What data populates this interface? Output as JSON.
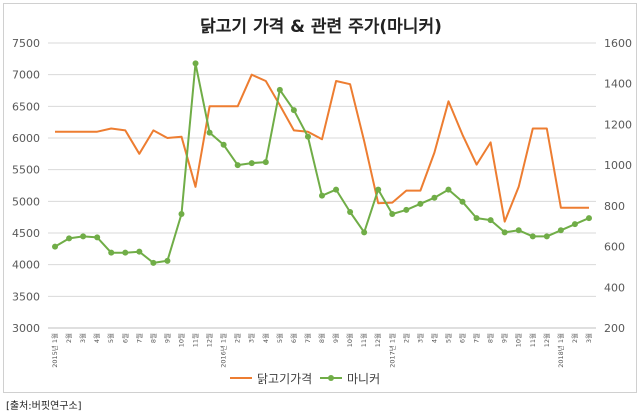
{
  "chart_data": {
    "type": "line",
    "title": "닭고기 가격 & 관련 주가(마니커)",
    "x": [
      "2015년 1월",
      "2월",
      "3월",
      "4월",
      "5월",
      "6월",
      "7월",
      "8월",
      "9월",
      "10월",
      "11월",
      "12월",
      "2016년 1월",
      "2월",
      "3월",
      "4월",
      "5월",
      "6월",
      "7월",
      "8월",
      "9월",
      "10월",
      "11월",
      "12월",
      "2017년 1월",
      "2월",
      "3월",
      "4월",
      "5월",
      "6월",
      "7월",
      "8월",
      "9월",
      "10월",
      "11월",
      "12월",
      "2018년 1월",
      "2월",
      "3월"
    ],
    "y_left": {
      "min": 3000,
      "max": 7500,
      "step": 500,
      "ticks": [
        "3000",
        "3500",
        "4000",
        "4500",
        "5000",
        "5500",
        "6000",
        "6500",
        "7000",
        "7500"
      ]
    },
    "y_right": {
      "min": 200,
      "max": 1600,
      "step": 200,
      "ticks": [
        "200",
        "400",
        "600",
        "800",
        "1000",
        "1200",
        "1400",
        "1600"
      ]
    },
    "series": [
      {
        "name": "닭고기가격",
        "axis": "left",
        "color": "#ED7D31",
        "values": [
          6100,
          6100,
          6100,
          6100,
          6150,
          6120,
          5750,
          6120,
          6000,
          6020,
          5230,
          6500,
          6500,
          6500,
          7000,
          6900,
          6520,
          6120,
          6100,
          5980,
          6900,
          6850,
          5950,
          4970,
          4980,
          5170,
          5170,
          5770,
          6580,
          6050,
          5580,
          5930,
          4680,
          5230,
          6150,
          6150,
          4900,
          4900,
          4900
        ]
      },
      {
        "name": "마니커",
        "axis": "right",
        "color": "#70AD47",
        "values": [
          600,
          640,
          650,
          645,
          570,
          570,
          575,
          520,
          530,
          760,
          1500,
          1160,
          1100,
          1000,
          1010,
          1015,
          1370,
          1270,
          1140,
          850,
          880,
          770,
          670,
          880,
          760,
          780,
          810,
          840,
          880,
          820,
          740,
          730,
          670,
          680,
          650,
          650,
          680,
          710,
          740
        ]
      }
    ],
    "legend_position": "bottom",
    "grid": true
  },
  "source": "[출처:버핏연구소]"
}
